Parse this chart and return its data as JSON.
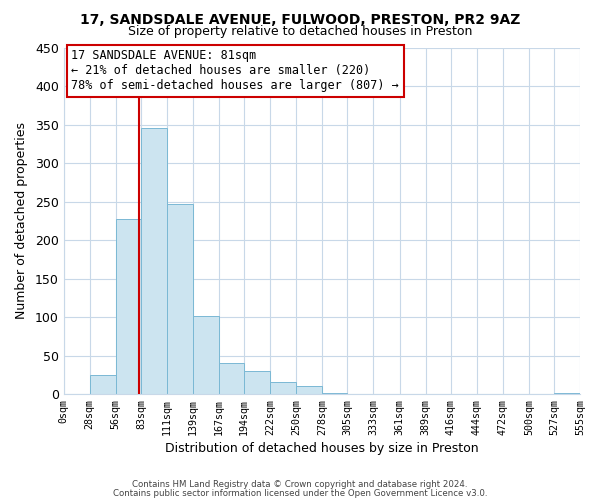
{
  "title_line1": "17, SANDSDALE AVENUE, FULWOOD, PRESTON, PR2 9AZ",
  "title_line2": "Size of property relative to detached houses in Preston",
  "xlabel": "Distribution of detached houses by size in Preston",
  "ylabel": "Number of detached properties",
  "bar_edges": [
    0,
    28,
    56,
    83,
    111,
    139,
    167,
    194,
    222,
    250,
    278,
    305,
    333,
    361,
    389,
    416,
    444,
    472,
    500,
    527,
    555
  ],
  "bar_heights": [
    0,
    25,
    228,
    345,
    247,
    101,
    40,
    30,
    16,
    10,
    2,
    0,
    0,
    0,
    0,
    0,
    0,
    0,
    0,
    1
  ],
  "bar_color": "#cce4f0",
  "bar_edge_color": "#7ab8d4",
  "vline_x": 81,
  "vline_color": "#cc0000",
  "ylim": [
    0,
    450
  ],
  "yticks": [
    0,
    50,
    100,
    150,
    200,
    250,
    300,
    350,
    400,
    450
  ],
  "tick_labels": [
    "0sqm",
    "28sqm",
    "56sqm",
    "83sqm",
    "111sqm",
    "139sqm",
    "167sqm",
    "194sqm",
    "222sqm",
    "250sqm",
    "278sqm",
    "305sqm",
    "333sqm",
    "361sqm",
    "389sqm",
    "416sqm",
    "444sqm",
    "472sqm",
    "500sqm",
    "527sqm",
    "555sqm"
  ],
  "annotation_title": "17 SANDSDALE AVENUE: 81sqm",
  "annotation_line1": "← 21% of detached houses are smaller (220)",
  "annotation_line2": "78% of semi-detached houses are larger (807) →",
  "footnote1": "Contains HM Land Registry data © Crown copyright and database right 2024.",
  "footnote2": "Contains public sector information licensed under the Open Government Licence v3.0.",
  "background_color": "#ffffff",
  "grid_color": "#c8d8e8"
}
